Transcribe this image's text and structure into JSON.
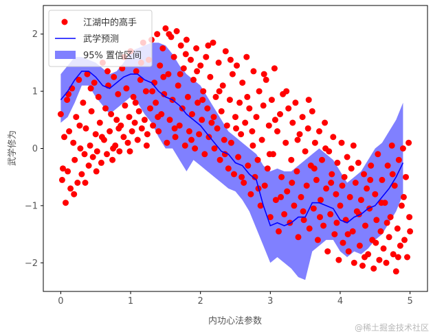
{
  "chart_data": {
    "type": "scatter",
    "xlabel": "内功心法参数",
    "ylabel": "武学修为",
    "xlim": [
      -0.25,
      5.25
    ],
    "ylim": [
      -2.5,
      2.5
    ],
    "xticks": [
      0,
      1,
      2,
      3,
      4,
      5
    ],
    "yticks": [
      -2,
      -1,
      0,
      1,
      2
    ],
    "xtick_labels": [
      "0",
      "1",
      "2",
      "3",
      "4",
      "5"
    ],
    "ytick_labels": [
      "−2",
      "−1",
      "0",
      "1",
      "2"
    ],
    "grid": false,
    "legend_position": "top-left",
    "legend": [
      "江湖中的高手",
      "武学预测",
      "95% 置信区间"
    ],
    "colors": {
      "scatter": "#ff0000",
      "line": "#0000ff",
      "band": "#8080ff"
    },
    "scatter_points": [
      [
        0.0,
        0.6
      ],
      [
        0.02,
        -0.55
      ],
      [
        0.05,
        0.2
      ],
      [
        0.07,
        -0.95
      ],
      [
        0.09,
        0.85
      ],
      [
        0.1,
        -0.4
      ],
      [
        0.12,
        0.3
      ],
      [
        0.14,
        -0.7
      ],
      [
        0.16,
        1.05
      ],
      [
        0.18,
        0.1
      ],
      [
        0.2,
        -0.2
      ],
      [
        0.22,
        0.55
      ],
      [
        0.24,
        -0.6
      ],
      [
        0.26,
        1.2
      ],
      [
        0.28,
        0.0
      ],
      [
        0.3,
        -0.45
      ],
      [
        0.32,
        0.8
      ],
      [
        0.34,
        -0.1
      ],
      [
        0.36,
        0.35
      ],
      [
        0.38,
        1.3
      ],
      [
        0.4,
        -0.3
      ],
      [
        0.42,
        0.05
      ],
      [
        0.44,
        0.65
      ],
      [
        0.46,
        -0.15
      ],
      [
        0.48,
        1.15
      ],
      [
        0.5,
        0.25
      ],
      [
        0.52,
        -0.05
      ],
      [
        0.54,
        0.9
      ],
      [
        0.56,
        0.45
      ],
      [
        0.58,
        -0.25
      ],
      [
        0.6,
        1.5
      ],
      [
        0.62,
        0.15
      ],
      [
        0.64,
        0.7
      ],
      [
        0.66,
        -0.1
      ],
      [
        0.68,
        1.1
      ],
      [
        0.7,
        0.3
      ],
      [
        0.72,
        0.6
      ],
      [
        0.74,
        -0.2
      ],
      [
        0.76,
        1.25
      ],
      [
        0.78,
        0.05
      ],
      [
        0.8,
        0.5
      ],
      [
        0.82,
        0.95
      ],
      [
        0.84,
        -0.05
      ],
      [
        0.86,
        0.4
      ],
      [
        0.88,
        1.4
      ],
      [
        0.9,
        0.2
      ],
      [
        0.92,
        0.75
      ],
      [
        0.94,
        1.05
      ],
      [
        0.96,
        0.1
      ],
      [
        0.98,
        0.55
      ],
      [
        1.0,
        1.7
      ],
      [
        1.02,
        0.3
      ],
      [
        1.04,
        0.9
      ],
      [
        1.06,
        0.45
      ],
      [
        1.08,
        1.35
      ],
      [
        1.1,
        0.15
      ],
      [
        1.12,
        0.65
      ],
      [
        1.14,
        1.2
      ],
      [
        1.16,
        0.35
      ],
      [
        1.18,
        1.85
      ],
      [
        1.2,
        0.5
      ],
      [
        1.22,
        1.0
      ],
      [
        1.24,
        0.25
      ],
      [
        1.26,
        1.55
      ],
      [
        1.28,
        0.7
      ],
      [
        1.3,
        1.9
      ],
      [
        1.32,
        0.4
      ],
      [
        1.34,
        1.15
      ],
      [
        1.36,
        0.8
      ],
      [
        1.38,
        2.0
      ],
      [
        1.4,
        0.3
      ],
      [
        1.42,
        1.45
      ],
      [
        1.44,
        0.6
      ],
      [
        1.46,
        1.75
      ],
      [
        1.48,
        0.95
      ],
      [
        1.5,
        2.1
      ],
      [
        1.52,
        0.1
      ],
      [
        1.54,
        1.3
      ],
      [
        1.56,
        0.5
      ],
      [
        1.58,
        1.95
      ],
      [
        1.6,
        0.85
      ],
      [
        1.62,
        1.6
      ],
      [
        1.64,
        0.2
      ],
      [
        1.66,
        2.05
      ],
      [
        1.68,
        1.1
      ],
      [
        1.7,
        0.4
      ],
      [
        1.72,
        1.8
      ],
      [
        1.74,
        0.7
      ],
      [
        1.76,
        1.4
      ],
      [
        1.78,
        0.05
      ],
      [
        1.8,
        1.9
      ],
      [
        1.82,
        0.9
      ],
      [
        1.84,
        0.3
      ],
      [
        1.86,
        1.55
      ],
      [
        1.88,
        0.6
      ],
      [
        1.9,
        1.2
      ],
      [
        1.92,
        0.0
      ],
      [
        1.94,
        1.75
      ],
      [
        1.96,
        0.8
      ],
      [
        1.98,
        0.25
      ],
      [
        2.0,
        1.45
      ],
      [
        2.02,
        0.5
      ],
      [
        2.04,
        1.0
      ],
      [
        2.06,
        -0.1
      ],
      [
        2.08,
        1.6
      ],
      [
        2.1,
        0.7
      ],
      [
        2.12,
        0.2
      ],
      [
        2.14,
        1.25
      ],
      [
        2.16,
        0.45
      ],
      [
        2.18,
        1.85
      ],
      [
        2.2,
        0.0
      ],
      [
        2.22,
        0.9
      ],
      [
        2.24,
        0.35
      ],
      [
        2.26,
        1.5
      ],
      [
        2.28,
        -0.2
      ],
      [
        2.3,
        0.65
      ],
      [
        2.32,
        1.1
      ],
      [
        2.34,
        0.15
      ],
      [
        2.36,
        1.7
      ],
      [
        2.38,
        0.4
      ],
      [
        2.4,
        -0.35
      ],
      [
        2.42,
        0.85
      ],
      [
        2.44,
        0.1
      ],
      [
        2.46,
        1.3
      ],
      [
        2.48,
        -0.45
      ],
      [
        2.5,
        0.55
      ],
      [
        2.52,
        1.45
      ],
      [
        2.54,
        -0.15
      ],
      [
        2.56,
        0.8
      ],
      [
        2.58,
        0.25
      ],
      [
        2.6,
        1.15
      ],
      [
        2.62,
        -0.6
      ],
      [
        2.64,
        0.45
      ],
      [
        2.66,
        1.6
      ],
      [
        2.68,
        -0.3
      ],
      [
        2.7,
        0.7
      ],
      [
        2.72,
        -0.8
      ],
      [
        2.74,
        0.3
      ],
      [
        2.76,
        1.35
      ],
      [
        2.78,
        -0.5
      ],
      [
        2.8,
        0.55
      ],
      [
        2.82,
        -0.2
      ],
      [
        2.84,
        1.0
      ],
      [
        2.86,
        -1.0
      ],
      [
        2.88,
        0.15
      ],
      [
        2.9,
        0.75
      ],
      [
        2.92,
        -0.65
      ],
      [
        2.94,
        1.2
      ],
      [
        2.96,
        -0.35
      ],
      [
        2.98,
        0.4
      ],
      [
        3.0,
        -1.2
      ],
      [
        3.02,
        0.85
      ],
      [
        3.04,
        -0.1
      ],
      [
        3.06,
        1.4
      ],
      [
        3.08,
        -0.9
      ],
      [
        3.1,
        0.3
      ],
      [
        3.12,
        -1.45
      ],
      [
        3.14,
        0.6
      ],
      [
        3.16,
        -0.5
      ],
      [
        3.18,
        0.95
      ],
      [
        3.2,
        -1.15
      ],
      [
        3.22,
        0.1
      ],
      [
        3.24,
        -0.75
      ],
      [
        3.26,
        0.7
      ],
      [
        3.28,
        -1.3
      ],
      [
        3.3,
        -0.2
      ],
      [
        3.32,
        0.45
      ],
      [
        3.34,
        -1.0
      ],
      [
        3.36,
        0.8
      ],
      [
        3.38,
        -0.4
      ],
      [
        3.4,
        -1.55
      ],
      [
        3.42,
        0.25
      ],
      [
        3.44,
        -0.85
      ],
      [
        3.46,
        0.55
      ],
      [
        3.48,
        -1.25
      ],
      [
        3.5,
        -0.05
      ],
      [
        3.52,
        -0.65
      ],
      [
        3.54,
        0.35
      ],
      [
        3.56,
        -1.4
      ],
      [
        3.58,
        -0.3
      ],
      [
        3.6,
        0.65
      ],
      [
        3.62,
        -1.05
      ],
      [
        3.64,
        0.1
      ],
      [
        3.66,
        -0.55
      ],
      [
        3.68,
        -1.6
      ],
      [
        3.7,
        0.3
      ],
      [
        3.72,
        -0.9
      ],
      [
        3.74,
        -0.2
      ],
      [
        3.76,
        -1.35
      ],
      [
        3.78,
        0.45
      ],
      [
        3.8,
        -0.7
      ],
      [
        3.82,
        -1.8
      ],
      [
        3.84,
        -0.05
      ],
      [
        3.86,
        -1.15
      ],
      [
        3.88,
        -0.45
      ],
      [
        3.9,
        0.2
      ],
      [
        3.92,
        -1.5
      ],
      [
        3.94,
        -0.8
      ],
      [
        3.96,
        -0.25
      ],
      [
        3.98,
        -1.95
      ],
      [
        4.0,
        -1.0
      ],
      [
        4.02,
        0.1
      ],
      [
        4.04,
        -1.65
      ],
      [
        4.06,
        -0.5
      ],
      [
        4.08,
        -1.25
      ],
      [
        4.1,
        -0.15
      ],
      [
        4.12,
        -1.8
      ],
      [
        4.14,
        -0.85
      ],
      [
        4.16,
        -0.35
      ],
      [
        4.18,
        -1.45
      ],
      [
        4.2,
        -2.0
      ],
      [
        4.22,
        -0.6
      ],
      [
        4.24,
        -1.1
      ],
      [
        4.26,
        -0.25
      ],
      [
        4.28,
        -1.7
      ],
      [
        4.3,
        -0.9
      ],
      [
        4.32,
        -2.05
      ],
      [
        4.34,
        -0.45
      ],
      [
        4.36,
        -1.35
      ],
      [
        4.38,
        -0.7
      ],
      [
        4.4,
        -1.85
      ],
      [
        4.42,
        -1.05
      ],
      [
        4.44,
        -0.3
      ],
      [
        4.46,
        -1.6
      ],
      [
        4.48,
        -2.1
      ],
      [
        4.5,
        -0.8
      ],
      [
        4.52,
        -1.25
      ],
      [
        4.54,
        -0.1
      ],
      [
        4.56,
        -1.95
      ],
      [
        4.58,
        -1.45
      ],
      [
        4.6,
        -0.55
      ],
      [
        4.62,
        -1.75
      ],
      [
        4.64,
        -0.95
      ],
      [
        4.66,
        -2.0
      ],
      [
        4.68,
        -0.3
      ],
      [
        4.7,
        -1.55
      ],
      [
        4.72,
        -1.2
      ],
      [
        4.74,
        0.05
      ],
      [
        4.76,
        -1.85
      ],
      [
        4.78,
        -0.65
      ],
      [
        4.8,
        -2.15
      ],
      [
        4.82,
        -1.4
      ],
      [
        4.84,
        -0.2
      ],
      [
        4.86,
        -1.7
      ],
      [
        4.88,
        -1.0
      ],
      [
        4.9,
        0.0
      ],
      [
        4.92,
        -1.6
      ],
      [
        4.94,
        -0.5
      ],
      [
        4.96,
        -1.9
      ],
      [
        4.98,
        0.1
      ],
      [
        5.0,
        -1.45
      ],
      [
        0.03,
        -0.35
      ],
      [
        0.11,
        0.95
      ],
      [
        0.19,
        -0.8
      ],
      [
        0.27,
        0.4
      ],
      [
        0.35,
        -0.6
      ],
      [
        0.43,
        1.05
      ],
      [
        0.51,
        -0.4
      ],
      [
        0.59,
        0.2
      ],
      [
        0.67,
        1.35
      ],
      [
        0.75,
        0.0
      ],
      [
        0.83,
        0.35
      ],
      [
        0.91,
        1.6
      ],
      [
        0.99,
        -0.05
      ],
      [
        1.07,
        0.8
      ],
      [
        1.15,
        1.5
      ],
      [
        1.23,
        0.05
      ],
      [
        1.31,
        1.0
      ],
      [
        1.39,
        0.55
      ],
      [
        1.47,
        1.25
      ],
      [
        1.55,
        2.0
      ],
      [
        1.63,
        0.35
      ],
      [
        1.71,
        1.3
      ],
      [
        1.79,
        1.65
      ],
      [
        1.87,
        0.15
      ],
      [
        1.95,
        1.35
      ],
      [
        2.03,
        0.85
      ],
      [
        2.11,
        1.8
      ],
      [
        2.19,
        0.55
      ],
      [
        2.27,
        1.0
      ],
      [
        2.35,
        -0.1
      ],
      [
        2.43,
        1.55
      ],
      [
        2.51,
        0.35
      ],
      [
        2.59,
        -0.5
      ],
      [
        2.67,
        0.9
      ],
      [
        2.75,
        0.05
      ],
      [
        2.83,
        -0.7
      ],
      [
        2.91,
        1.3
      ],
      [
        2.99,
        -0.1
      ],
      [
        3.07,
        0.5
      ],
      [
        3.15,
        -0.85
      ],
      [
        3.23,
        1.0
      ],
      [
        3.31,
        -0.6
      ],
      [
        3.39,
        0.15
      ],
      [
        3.47,
        -1.1
      ],
      [
        3.55,
        0.85
      ],
      [
        3.63,
        -0.35
      ],
      [
        3.71,
        -1.2
      ],
      [
        3.79,
        0.0
      ],
      [
        3.87,
        -0.6
      ],
      [
        3.95,
        -1.3
      ],
      [
        4.03,
        -0.65
      ],
      [
        4.11,
        -1.5
      ],
      [
        4.19,
        0.05
      ],
      [
        4.27,
        -1.15
      ],
      [
        4.35,
        -1.9
      ],
      [
        4.43,
        -0.55
      ],
      [
        4.51,
        -1.65
      ],
      [
        4.59,
        -0.95
      ],
      [
        4.67,
        -1.3
      ],
      [
        4.75,
        -0.45
      ],
      [
        4.83,
        -1.9
      ],
      [
        4.91,
        -0.85
      ],
      [
        4.99,
        -1.2
      ]
    ],
    "prediction_line": [
      [
        0.0,
        0.85
      ],
      [
        0.1,
        1.0
      ],
      [
        0.2,
        1.2
      ],
      [
        0.3,
        1.35
      ],
      [
        0.4,
        1.35
      ],
      [
        0.5,
        1.25
      ],
      [
        0.6,
        1.1
      ],
      [
        0.7,
        1.05
      ],
      [
        0.8,
        1.15
      ],
      [
        0.9,
        1.25
      ],
      [
        1.0,
        1.3
      ],
      [
        1.1,
        1.3
      ],
      [
        1.2,
        1.2
      ],
      [
        1.3,
        1.15
      ],
      [
        1.4,
        1.0
      ],
      [
        1.5,
        0.9
      ],
      [
        1.6,
        0.85
      ],
      [
        1.7,
        0.75
      ],
      [
        1.8,
        0.6
      ],
      [
        1.9,
        0.5
      ],
      [
        2.0,
        0.4
      ],
      [
        2.1,
        0.25
      ],
      [
        2.2,
        0.1
      ],
      [
        2.3,
        -0.05
      ],
      [
        2.4,
        -0.1
      ],
      [
        2.5,
        -0.25
      ],
      [
        2.6,
        -0.3
      ],
      [
        2.7,
        -0.45
      ],
      [
        2.8,
        -0.55
      ],
      [
        2.9,
        -1.0
      ],
      [
        3.0,
        -1.35
      ],
      [
        3.1,
        -1.3
      ],
      [
        3.2,
        -1.35
      ],
      [
        3.3,
        -1.3
      ],
      [
        3.4,
        -1.2
      ],
      [
        3.5,
        -1.2
      ],
      [
        3.6,
        -0.95
      ],
      [
        3.7,
        -0.95
      ],
      [
        3.8,
        -1.0
      ],
      [
        3.9,
        -1.05
      ],
      [
        4.0,
        -1.25
      ],
      [
        4.1,
        -1.3
      ],
      [
        4.2,
        -1.2
      ],
      [
        4.3,
        -1.15
      ],
      [
        4.4,
        -1.05
      ],
      [
        4.5,
        -1.0
      ],
      [
        4.6,
        -0.85
      ],
      [
        4.7,
        -0.7
      ],
      [
        4.8,
        -0.5
      ],
      [
        4.9,
        -0.25
      ]
    ],
    "confidence_band": {
      "x": [
        0.0,
        0.1,
        0.2,
        0.3,
        0.4,
        0.5,
        0.6,
        0.7,
        0.8,
        0.9,
        1.0,
        1.1,
        1.2,
        1.3,
        1.4,
        1.5,
        1.6,
        1.7,
        1.8,
        1.9,
        2.0,
        2.1,
        2.2,
        2.3,
        2.4,
        2.5,
        2.6,
        2.7,
        2.8,
        2.9,
        3.0,
        3.1,
        3.2,
        3.3,
        3.4,
        3.5,
        3.6,
        3.7,
        3.8,
        3.9,
        4.0,
        4.1,
        4.2,
        4.3,
        4.4,
        4.5,
        4.6,
        4.7,
        4.8,
        4.9
      ],
      "upper": [
        1.3,
        1.45,
        1.6,
        1.6,
        1.55,
        1.5,
        1.4,
        1.3,
        1.35,
        1.5,
        1.7,
        1.75,
        1.8,
        1.85,
        1.85,
        1.8,
        1.65,
        1.45,
        1.3,
        1.2,
        1.1,
        0.9,
        0.7,
        0.5,
        0.3,
        0.2,
        0.1,
        0.0,
        -0.1,
        -0.3,
        -0.4,
        -0.35,
        -0.4,
        -0.4,
        -0.3,
        -0.2,
        -0.1,
        0.0,
        -0.1,
        -0.2,
        -0.4,
        -0.6,
        -0.5,
        -0.4,
        -0.2,
        0.0,
        0.1,
        0.3,
        0.5,
        0.8
      ],
      "lower": [
        0.45,
        0.55,
        0.8,
        1.1,
        1.1,
        0.9,
        0.75,
        0.6,
        0.7,
        0.8,
        0.9,
        0.8,
        0.6,
        0.45,
        0.2,
        0.0,
        0.0,
        -0.2,
        -0.4,
        -0.2,
        -0.3,
        -0.4,
        -0.5,
        -0.6,
        -0.7,
        -0.75,
        -0.9,
        -1.1,
        -1.4,
        -1.7,
        -2.0,
        -1.9,
        -2.0,
        -2.1,
        -2.25,
        -2.3,
        -1.8,
        -1.7,
        -1.6,
        -1.6,
        -1.8,
        -1.9,
        -1.8,
        -1.85,
        -1.75,
        -1.6,
        -1.5,
        -1.3,
        -1.1,
        -0.8
      ]
    }
  },
  "watermark": "@稀土掘金技术社区"
}
